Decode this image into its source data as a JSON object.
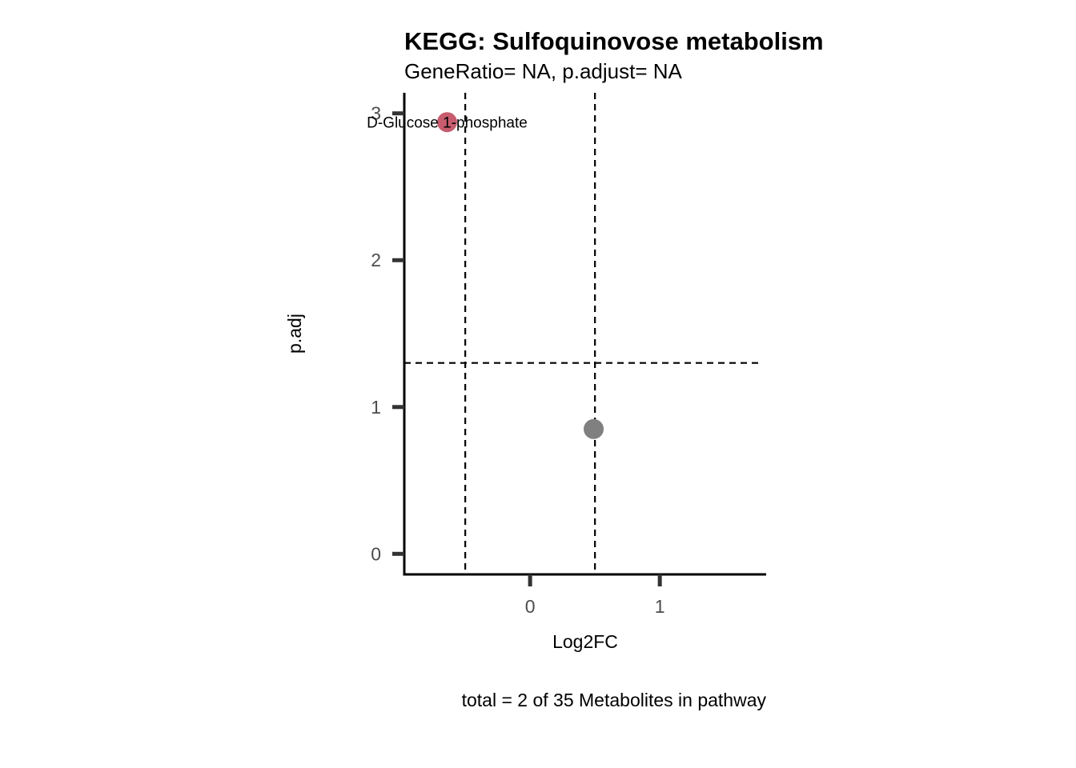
{
  "chart_data": {
    "type": "scatter",
    "title": "KEGG: Sulfoquinovose metabolism",
    "subtitle": "GeneRatio= NA, p.adjust= NA",
    "xlabel": "Log2FC",
    "ylabel": "p.adj",
    "caption": "total = 2 of 35 Metabolites in pathway",
    "xlim": [
      -0.97,
      1.82
    ],
    "ylim": [
      -0.14,
      3.14
    ],
    "x_ticks": [
      0,
      1
    ],
    "y_ticks": [
      0,
      1,
      2,
      3
    ],
    "vlines": [
      -0.5,
      0.5
    ],
    "hline": 1.3,
    "grid": false,
    "legend": "none",
    "points": [
      {
        "x": -0.64,
        "y": 2.94,
        "label": "D-Glucose 1-phosphate",
        "color": "#c75c6e"
      },
      {
        "x": 0.49,
        "y": 0.85,
        "label": "",
        "color": "#808080"
      }
    ]
  }
}
